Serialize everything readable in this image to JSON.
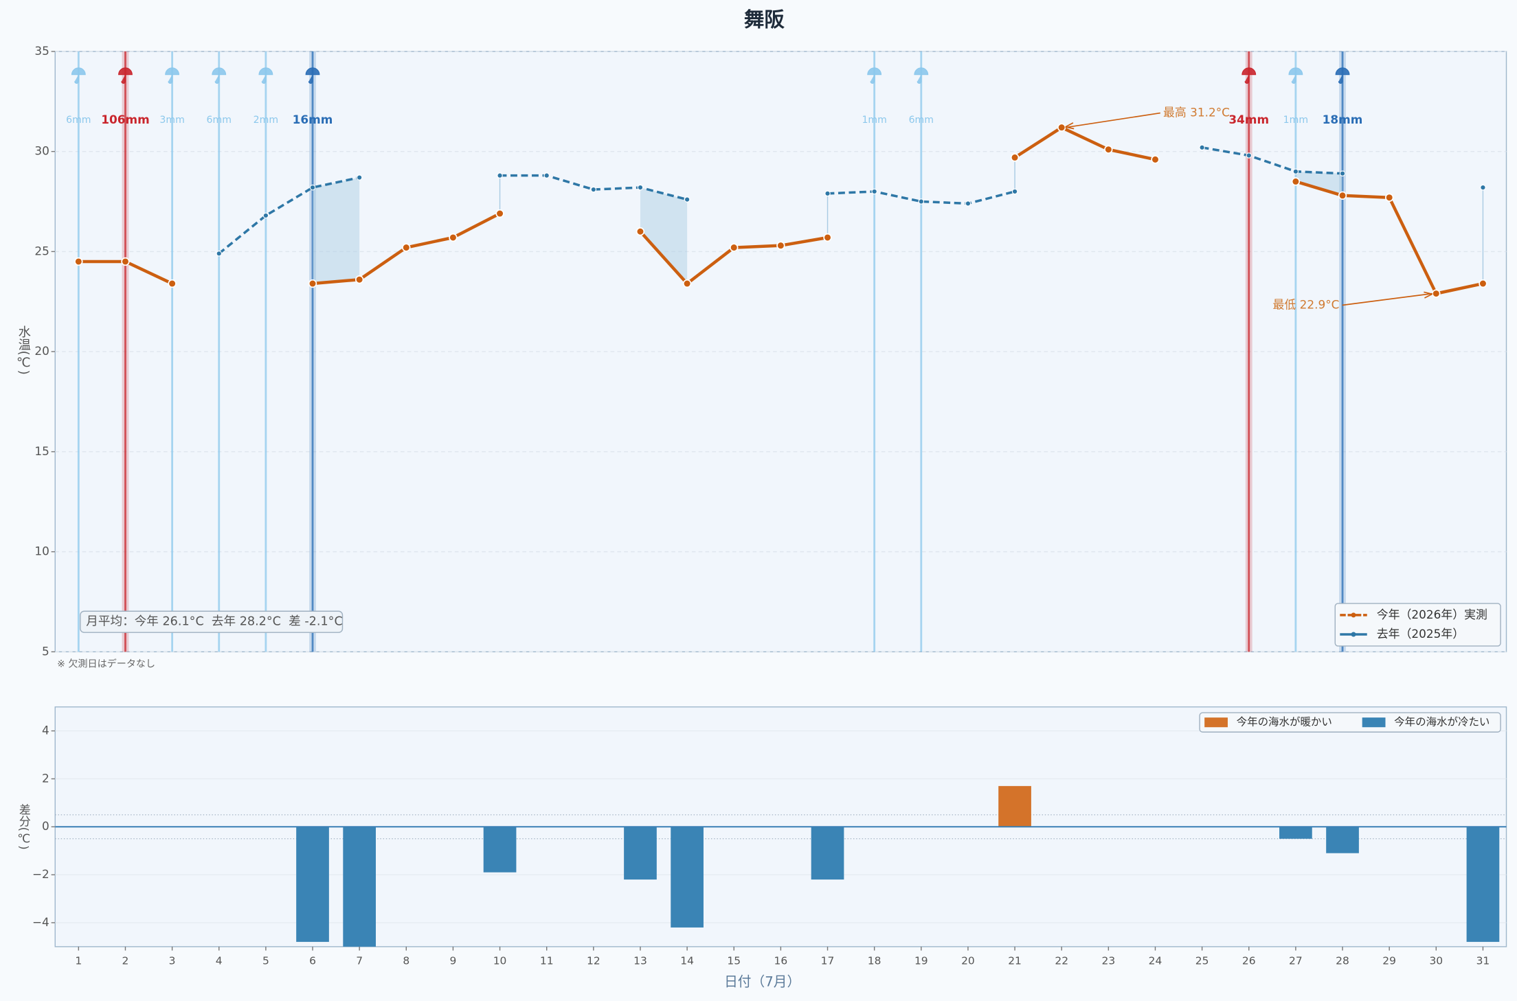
{
  "chart_data": [
    {
      "type": "line",
      "title": "舞阪",
      "ylabel": "水温(℃)",
      "x": [
        1,
        2,
        3,
        4,
        5,
        6,
        7,
        8,
        9,
        10,
        11,
        12,
        13,
        14,
        15,
        16,
        17,
        18,
        19,
        20,
        21,
        22,
        23,
        24,
        25,
        26,
        27,
        28,
        29,
        30,
        31
      ],
      "xlim": [
        0.5,
        31.5
      ],
      "ylim": [
        5,
        35
      ],
      "yticks": [
        5,
        10,
        15,
        20,
        25,
        30,
        35
      ],
      "grid": true,
      "legend": "lower right",
      "series": [
        {
          "name": "今年（2026年）実測",
          "color": "#cc5f10",
          "dashed": false,
          "values": [
            24.5,
            24.5,
            23.4,
            null,
            null,
            23.4,
            23.6,
            25.2,
            25.7,
            26.9,
            null,
            null,
            26.0,
            23.4,
            25.2,
            25.3,
            25.7,
            null,
            null,
            null,
            29.7,
            31.2,
            30.1,
            29.6,
            null,
            null,
            28.5,
            27.8,
            27.7,
            22.9,
            23.4
          ]
        },
        {
          "name": "去年（2025年）",
          "color": "#2e77a6",
          "dashed": true,
          "values": [
            null,
            null,
            null,
            24.9,
            26.8,
            28.2,
            28.7,
            null,
            null,
            28.8,
            28.8,
            28.1,
            28.2,
            27.6,
            null,
            null,
            27.9,
            28.0,
            27.5,
            27.4,
            28.0,
            null,
            null,
            null,
            30.2,
            29.8,
            29.0,
            28.9,
            null,
            null,
            28.2
          ]
        }
      ],
      "rain": {
        "days": [
          1,
          2,
          3,
          4,
          5,
          6,
          18,
          19,
          26,
          27,
          28
        ],
        "values": [
          6,
          106,
          3,
          6,
          2,
          16,
          1,
          6,
          34,
          1,
          18
        ],
        "value_labels": [
          "6mm",
          "106mm",
          "3mm",
          "6mm",
          "2mm",
          "16mm",
          "1mm",
          "6mm",
          "34mm",
          "1mm",
          "18mm"
        ],
        "colors": [
          "#8cc8ec",
          "#c9252c",
          "#8cc8ec",
          "#8cc8ec",
          "#8cc8ec",
          "#2a6db5",
          "#8cc8ec",
          "#8cc8ec",
          "#c9252c",
          "#8cc8ec",
          "#2a6db5"
        ],
        "emphasis": [
          false,
          true,
          false,
          false,
          false,
          true,
          false,
          false,
          true,
          false,
          true
        ]
      },
      "annotations": [
        {
          "text": "最高 31.2°C",
          "x": 22,
          "y": 31.2
        },
        {
          "text": "最低 22.9°C",
          "x": 30,
          "y": 22.9
        }
      ],
      "summary": "月平均：今年 26.1°C  去年 28.2°C  差 -2.1°C",
      "note": "※ 欠測日はデータなし"
    },
    {
      "type": "bar",
      "ylabel": "差分(℃)",
      "xlabel": "日付（7月）",
      "categories": [
        "1",
        "2",
        "3",
        "4",
        "5",
        "6",
        "7",
        "8",
        "9",
        "10",
        "11",
        "12",
        "13",
        "14",
        "15",
        "16",
        "17",
        "18",
        "19",
        "20",
        "21",
        "22",
        "23",
        "24",
        "25",
        "26",
        "27",
        "28",
        "29",
        "30",
        "31"
      ],
      "values": [
        null,
        null,
        null,
        null,
        null,
        -4.8,
        -5.1,
        null,
        null,
        -1.9,
        null,
        null,
        -2.2,
        -4.2,
        null,
        null,
        -2.2,
        null,
        null,
        null,
        1.7,
        null,
        null,
        null,
        null,
        null,
        -0.5,
        -1.1,
        null,
        null,
        -4.8
      ],
      "ylim": [
        -5,
        5
      ],
      "yticks": [
        {
          "value": -4,
          "label": "−4"
        },
        {
          "value": -2,
          "label": "−2"
        },
        0,
        2,
        4
      ],
      "reference_lines": [
        0.5,
        -0.5
      ],
      "grid": true,
      "legend": "upper right",
      "positive_color": "#d4732a",
      "negative_color": "#3a84b5",
      "legend_labels": [
        "今年の海水が暖かい",
        "今年の海水が冷たい"
      ]
    }
  ]
}
